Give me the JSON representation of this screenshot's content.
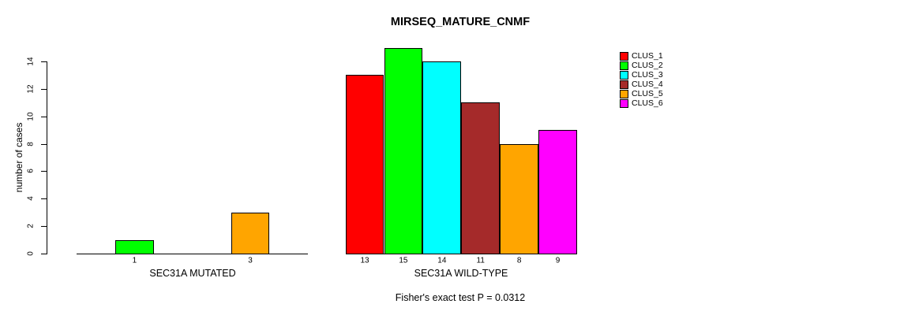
{
  "chart_data": {
    "type": "bar",
    "title": "MIRSEQ_MATURE_CNMF",
    "ylabel": "number of cases",
    "xlabel": "",
    "ylim": [
      0,
      14
    ],
    "yticks": [
      "0",
      "2",
      "4",
      "6",
      "8",
      "10",
      "12",
      "14"
    ],
    "grid": false,
    "legend_position": "right",
    "categories": [
      "CLUS_1",
      "CLUS_2",
      "CLUS_3",
      "CLUS_4",
      "CLUS_5",
      "CLUS_6"
    ],
    "series_colors": [
      "#FF0000",
      "#00FF00",
      "#00FFFF",
      "#A52A2A",
      "#FFA500",
      "#FF00FF"
    ],
    "groups": [
      {
        "label": "SEC31A MUTATED",
        "values": [
          0,
          1,
          0,
          0,
          3,
          0
        ],
        "bar_labels": [
          "",
          "1",
          "",
          "",
          "3",
          ""
        ]
      },
      {
        "label": "SEC31A WILD-TYPE",
        "values": [
          13,
          15,
          14,
          11,
          8,
          9
        ],
        "bar_labels": [
          "13",
          "15",
          "14",
          "11",
          "8",
          "9"
        ]
      }
    ],
    "legend": [
      {
        "label": "CLUS_1",
        "color": "#FF0000"
      },
      {
        "label": "CLUS_2",
        "color": "#00FF00"
      },
      {
        "label": "CLUS_3",
        "color": "#00FFFF"
      },
      {
        "label": "CLUS_4",
        "color": "#A52A2A"
      },
      {
        "label": "CLUS_5",
        "color": "#FFA500"
      },
      {
        "label": "CLUS_6",
        "color": "#FF00FF"
      }
    ],
    "annotation": "Fisher's exact test P = 0.0312"
  }
}
